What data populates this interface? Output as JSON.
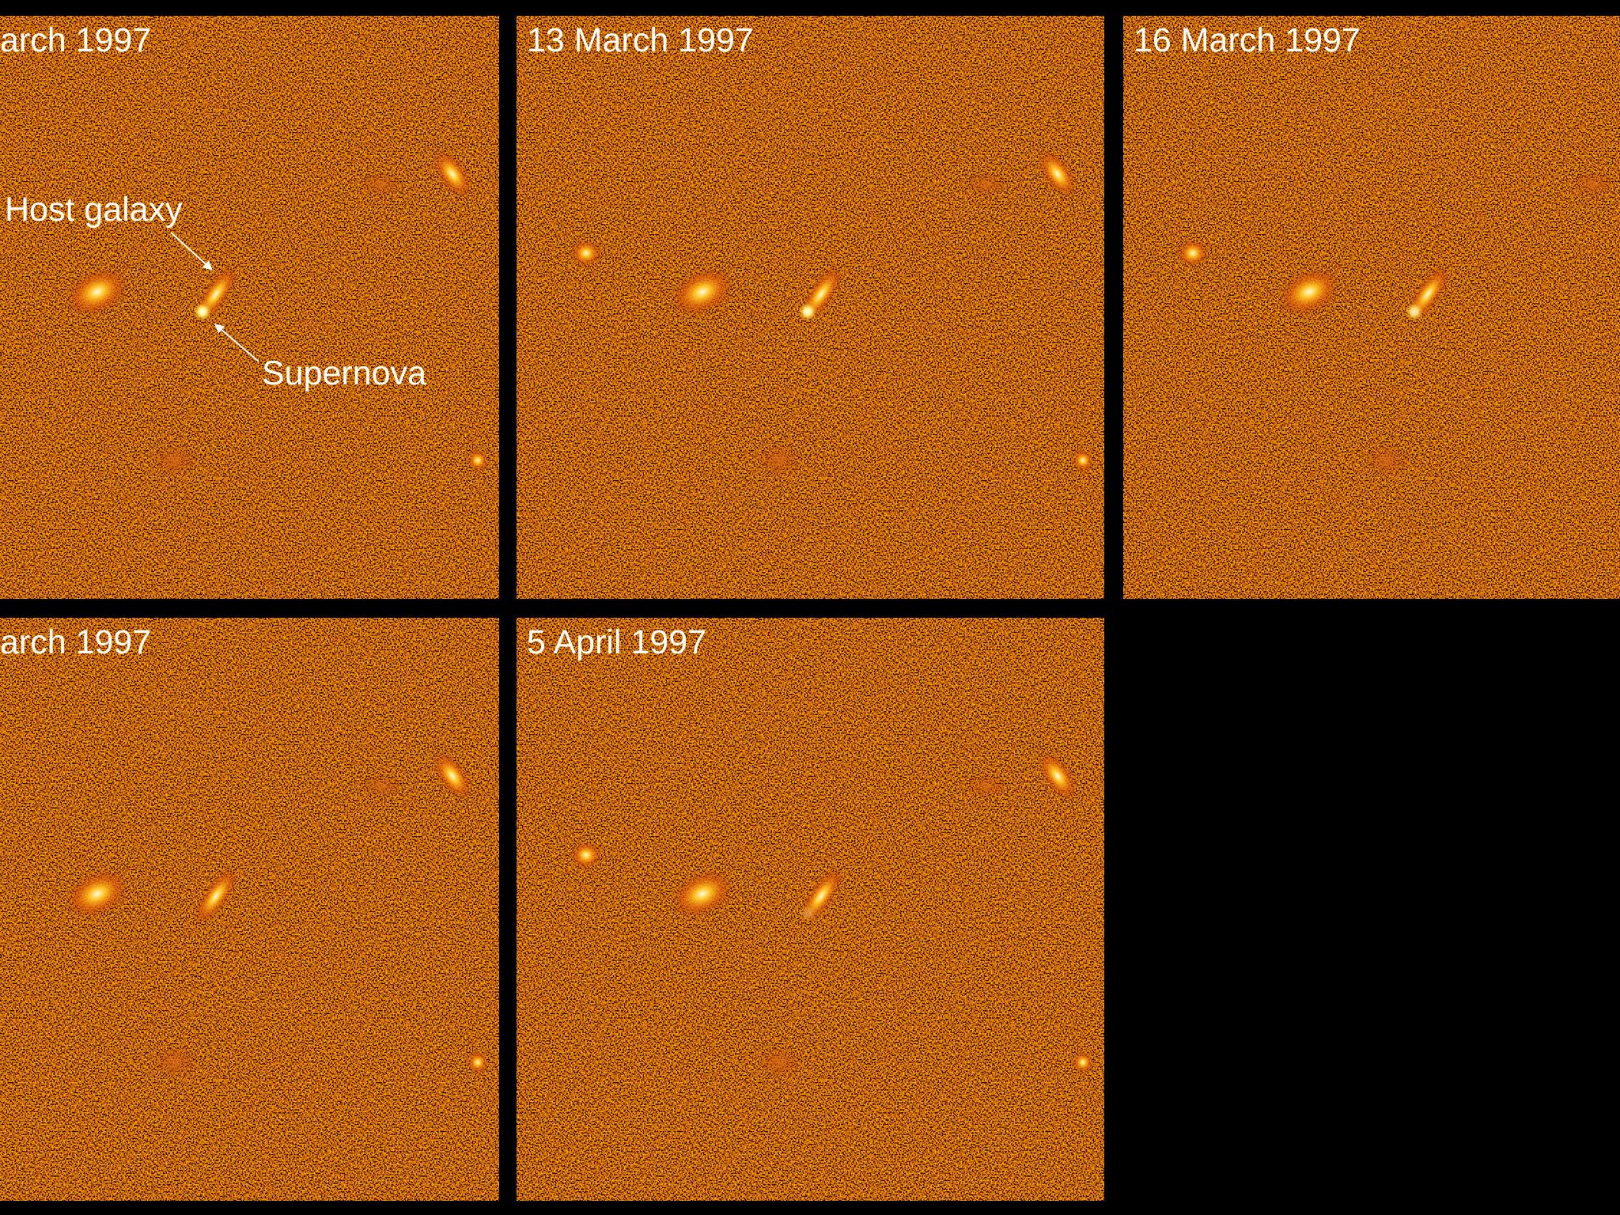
{
  "panels": [
    {
      "date": "arch 1997"
    },
    {
      "date": "13 March 1997"
    },
    {
      "date": "16 March 1997"
    },
    {
      "date": "arch 1997"
    },
    {
      "date": "5 April 1997"
    }
  ],
  "annotations": {
    "host": "Host galaxy",
    "supernova": "Supernova"
  }
}
